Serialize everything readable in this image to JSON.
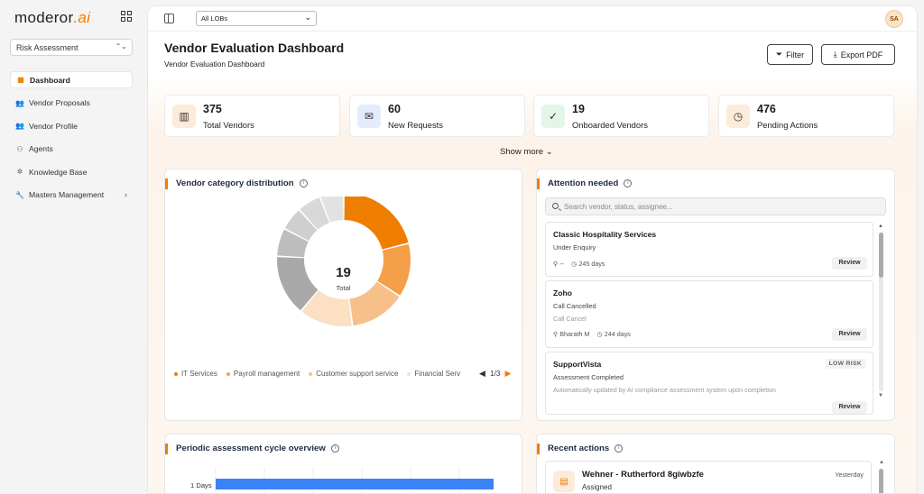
{
  "app": {
    "logo_main": "moderor",
    "logo_accent": ".ai"
  },
  "sidebar": {
    "module": "Risk Assessment",
    "items": [
      {
        "label": "Dashboard",
        "icon": "dashboard-icon",
        "glyph": "▦",
        "active": true
      },
      {
        "label": "Vendor Proposals",
        "icon": "users-icon",
        "glyph": "👥"
      },
      {
        "label": "Vendor Profile",
        "icon": "users-icon",
        "glyph": "👥"
      },
      {
        "label": "Agents",
        "icon": "agent-icon",
        "glyph": "⚇"
      },
      {
        "label": "Knowledge Base",
        "icon": "network-icon",
        "glyph": "✲"
      },
      {
        "label": "Masters Management",
        "icon": "wrench-icon",
        "glyph": "🔧",
        "has_submenu": true
      }
    ]
  },
  "topbar": {
    "lob_selected": "All LOBs",
    "avatar_initials": "SA"
  },
  "page": {
    "title": "Vendor Evaluation Dashboard",
    "subtitle": "Vendor Evaluation Dashboard",
    "filter_label": "Filter",
    "export_label": "Export PDF",
    "show_more": "Show more"
  },
  "stats": [
    {
      "value": "375",
      "label": "Total Vendors",
      "icon": "building-icon",
      "glyph": "▥",
      "bg": "#fdebd9",
      "fg": "#333"
    },
    {
      "value": "60",
      "label": "New Requests",
      "icon": "inbox-icon",
      "glyph": "✉",
      "bg": "#e3ecfb",
      "fg": "#333"
    },
    {
      "value": "19",
      "label": "Onboarded Vendors",
      "icon": "check-circle-icon",
      "glyph": "✓",
      "bg": "#e4f5ea",
      "fg": "#333"
    },
    {
      "value": "476",
      "label": "Pending Actions",
      "icon": "clock-icon",
      "glyph": "◷",
      "bg": "#fdebd9",
      "fg": "#333"
    }
  ],
  "category_card": {
    "title": "Vendor category distribution",
    "total_value": "19",
    "total_label": "Total",
    "legend_page": "1/3"
  },
  "chart_data": {
    "type": "pie",
    "title": "Vendor category distribution",
    "center_value": 19,
    "center_label": "Total",
    "categories": [
      "IT Services",
      "Payroll management",
      "Customer support service",
      "Financial Services",
      "",
      "",
      "",
      "",
      ""
    ],
    "values": [
      4,
      2.5,
      2.6,
      2.5,
      2.8,
      1.3,
      1.1,
      1.1,
      1.1
    ],
    "colors": [
      "#ef7d00",
      "#f4a04a",
      "#f7c08a",
      "#fbe0c4",
      "#a9a9a9",
      "#bdbdbd",
      "#cfcfcf",
      "#d8d8d8",
      "#e2e2e2"
    ],
    "legend_visible": [
      "IT Services",
      "Payroll management",
      "Customer support service",
      "Financial Serv"
    ]
  },
  "attention": {
    "title": "Attention needed",
    "search_placeholder": "Search vendor, status, assignee...",
    "items": [
      {
        "name": "Classic Hospitality Services",
        "status": "Under Enquiry",
        "assignee": "--",
        "days": "245 days",
        "action": "Review"
      },
      {
        "name": "Zoho",
        "status": "Call Cancelled",
        "note": "Call Cancel",
        "assignee": "Bharath M",
        "days": "244 days",
        "action": "Review"
      },
      {
        "name": "SupportVista",
        "status": "Assessment Completed",
        "note": "Automatically updated by AI compliance assessment system upon completion",
        "risk": "LOW RISK",
        "action": "Review"
      }
    ]
  },
  "periodic": {
    "title": "Periodic assessment cycle overview",
    "bar_label": "1 Days"
  },
  "recent": {
    "title": "Recent actions",
    "item_title": "Wehner - Rutherford 8giwbzfe",
    "item_sub": "Assigned",
    "item_time": "Yesterday"
  }
}
